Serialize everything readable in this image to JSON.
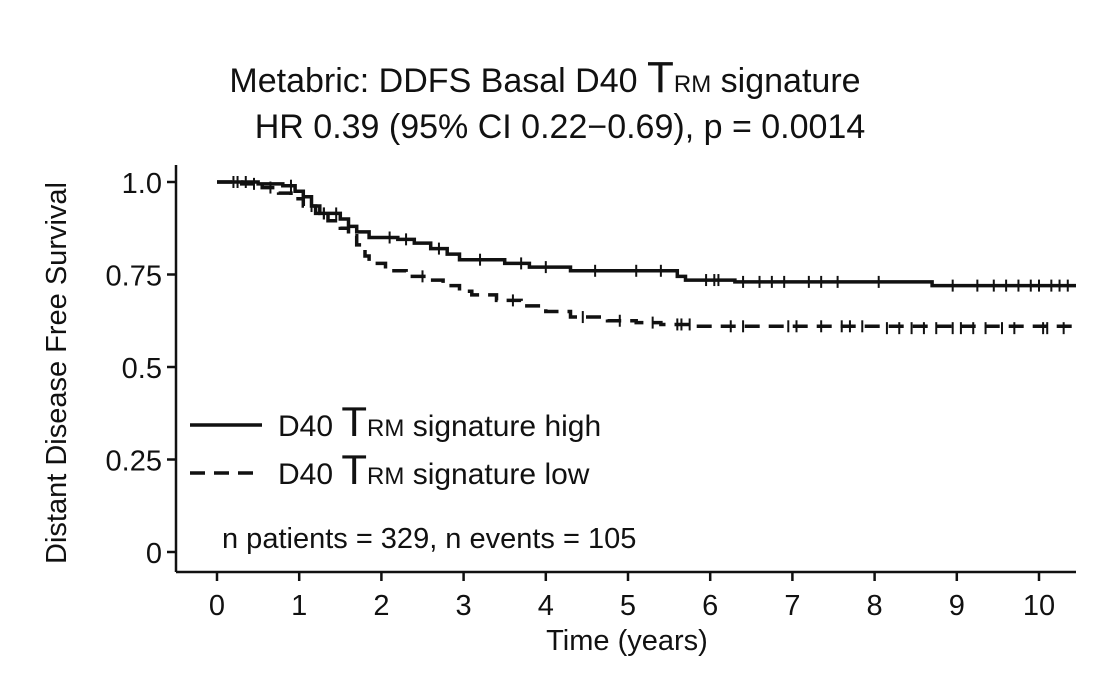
{
  "chart_data": {
    "type": "line",
    "title": {
      "line1_prefix": "Metabric: DDFS Basal D40 ",
      "line1_T": "T",
      "line1_sub": "RM",
      "line1_suffix": " signature",
      "line2": "HR 0.39 (95% CI 0.22−0.69), p = 0.0014"
    },
    "xlabel": "Time (years)",
    "ylabel": "Distant Disease Free Survival",
    "xlim": [
      -0.5,
      10.5
    ],
    "ylim": [
      0,
      1
    ],
    "xticks": [
      0,
      1,
      2,
      3,
      4,
      5,
      6,
      7,
      8,
      9,
      10
    ],
    "xtick_labels": [
      "0",
      "1",
      "2",
      "3",
      "4",
      "5",
      "6",
      "7",
      "8",
      "9",
      "10"
    ],
    "yticks": [
      0,
      0.25,
      0.5,
      0.75,
      1.0
    ],
    "ytick_labels": [
      "0",
      "0.25",
      "0.5",
      "0.75",
      "1.0"
    ],
    "series": [
      {
        "name": "D40 TRM signature high",
        "legend_prefix": "D40 ",
        "legend_T": "T",
        "legend_sub": "RM",
        "legend_suffix": " signature high",
        "style": "solid",
        "steps": [
          [
            0,
            1.0
          ],
          [
            0.5,
            0.995
          ],
          [
            0.8,
            0.99
          ],
          [
            0.95,
            0.975
          ],
          [
            1.05,
            0.96
          ],
          [
            1.15,
            0.935
          ],
          [
            1.25,
            0.915
          ],
          [
            1.5,
            0.9
          ],
          [
            1.6,
            0.88
          ],
          [
            1.7,
            0.865
          ],
          [
            1.85,
            0.85
          ],
          [
            2.2,
            0.845
          ],
          [
            2.4,
            0.835
          ],
          [
            2.6,
            0.82
          ],
          [
            2.8,
            0.805
          ],
          [
            2.95,
            0.79
          ],
          [
            3.5,
            0.78
          ],
          [
            3.8,
            0.77
          ],
          [
            4.3,
            0.76
          ],
          [
            5.6,
            0.745
          ],
          [
            5.7,
            0.735
          ],
          [
            6.3,
            0.73
          ],
          [
            8.7,
            0.72
          ],
          [
            10.45,
            0.72
          ]
        ],
        "censors": [
          [
            0.2,
            1.0
          ],
          [
            0.35,
            1.0
          ],
          [
            0.9,
            0.99
          ],
          [
            1.3,
            0.915
          ],
          [
            1.45,
            0.915
          ],
          [
            2.1,
            0.85
          ],
          [
            2.3,
            0.845
          ],
          [
            2.7,
            0.82
          ],
          [
            3.2,
            0.79
          ],
          [
            3.7,
            0.78
          ],
          [
            4.0,
            0.77
          ],
          [
            4.6,
            0.76
          ],
          [
            5.1,
            0.76
          ],
          [
            5.4,
            0.76
          ],
          [
            5.95,
            0.735
          ],
          [
            6.05,
            0.735
          ],
          [
            6.1,
            0.735
          ],
          [
            6.4,
            0.73
          ],
          [
            6.6,
            0.73
          ],
          [
            6.75,
            0.73
          ],
          [
            6.9,
            0.73
          ],
          [
            7.2,
            0.73
          ],
          [
            7.35,
            0.73
          ],
          [
            7.55,
            0.73
          ],
          [
            8.05,
            0.73
          ],
          [
            8.95,
            0.72
          ],
          [
            9.25,
            0.72
          ],
          [
            9.45,
            0.72
          ],
          [
            9.6,
            0.72
          ],
          [
            9.75,
            0.72
          ],
          [
            9.9,
            0.72
          ],
          [
            10.0,
            0.72
          ],
          [
            10.15,
            0.72
          ],
          [
            10.25,
            0.72
          ],
          [
            10.35,
            0.72
          ]
        ]
      },
      {
        "name": "D40 TRM signature low",
        "legend_prefix": "D40 ",
        "legend_T": "T",
        "legend_sub": "RM",
        "legend_suffix": " signature low",
        "style": "dashed",
        "steps": [
          [
            0,
            1.0
          ],
          [
            0.3,
            0.995
          ],
          [
            0.55,
            0.985
          ],
          [
            0.75,
            0.97
          ],
          [
            0.9,
            0.955
          ],
          [
            1.05,
            0.935
          ],
          [
            1.2,
            0.915
          ],
          [
            1.35,
            0.895
          ],
          [
            1.5,
            0.875
          ],
          [
            1.6,
            0.855
          ],
          [
            1.7,
            0.83
          ],
          [
            1.8,
            0.8
          ],
          [
            1.85,
            0.78
          ],
          [
            2.05,
            0.76
          ],
          [
            2.3,
            0.745
          ],
          [
            2.55,
            0.735
          ],
          [
            2.75,
            0.72
          ],
          [
            2.95,
            0.705
          ],
          [
            3.1,
            0.695
          ],
          [
            3.4,
            0.68
          ],
          [
            3.7,
            0.665
          ],
          [
            4.0,
            0.65
          ],
          [
            4.3,
            0.635
          ],
          [
            4.75,
            0.625
          ],
          [
            5.1,
            0.62
          ],
          [
            5.4,
            0.615
          ],
          [
            5.8,
            0.61
          ],
          [
            10.45,
            0.605
          ]
        ],
        "censors": [
          [
            0.25,
            1.0
          ],
          [
            0.45,
            0.995
          ],
          [
            0.65,
            0.985
          ],
          [
            1.15,
            0.935
          ],
          [
            1.3,
            0.915
          ],
          [
            2.5,
            0.745
          ],
          [
            3.6,
            0.68
          ],
          [
            4.45,
            0.635
          ],
          [
            4.9,
            0.625
          ],
          [
            5.3,
            0.62
          ],
          [
            5.6,
            0.615
          ],
          [
            5.65,
            0.615
          ],
          [
            5.75,
            0.615
          ],
          [
            6.25,
            0.61
          ],
          [
            6.4,
            0.61
          ],
          [
            6.95,
            0.61
          ],
          [
            7.05,
            0.61
          ],
          [
            7.35,
            0.61
          ],
          [
            7.6,
            0.61
          ],
          [
            7.7,
            0.61
          ],
          [
            7.85,
            0.61
          ],
          [
            8.15,
            0.605
          ],
          [
            8.3,
            0.605
          ],
          [
            8.45,
            0.605
          ],
          [
            8.6,
            0.605
          ],
          [
            8.75,
            0.605
          ],
          [
            8.95,
            0.605
          ],
          [
            9.05,
            0.605
          ],
          [
            9.2,
            0.605
          ],
          [
            9.35,
            0.605
          ],
          [
            9.55,
            0.605
          ],
          [
            9.7,
            0.605
          ],
          [
            10.05,
            0.605
          ],
          [
            10.1,
            0.605
          ],
          [
            10.3,
            0.605
          ]
        ]
      }
    ],
    "annotation": "n patients = 329, n events = 105",
    "legend_position": "lower-left",
    "grid": false
  }
}
